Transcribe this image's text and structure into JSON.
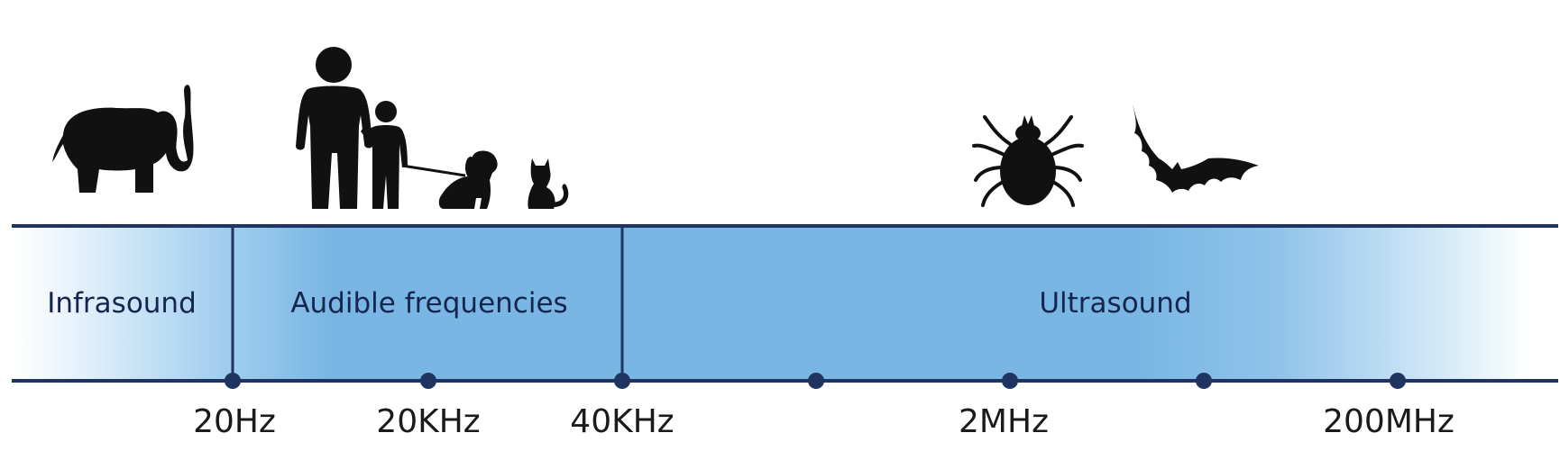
{
  "colors": {
    "band_blue": "#7ab6e4",
    "line": "#1f3461",
    "silhouette": "#111111"
  },
  "bands": [
    {
      "label": "Infrasound"
    },
    {
      "label": "Audible frequencies"
    },
    {
      "label": "Ultrasound"
    }
  ],
  "ticks": [
    "20Hz",
    "",
    "20KHz",
    "",
    "40KHz",
    "",
    "",
    "2MHz",
    "",
    "",
    "200MHz"
  ],
  "tick_labels": [
    "20Hz",
    "20KHz",
    "40KHz",
    "2MHz",
    "200MHz"
  ],
  "icons": [
    "elephant-icon",
    "adult-person-icon",
    "child-icon",
    "dog-icon",
    "cat-icon",
    "tick-insect-icon",
    "bat-icon"
  ]
}
